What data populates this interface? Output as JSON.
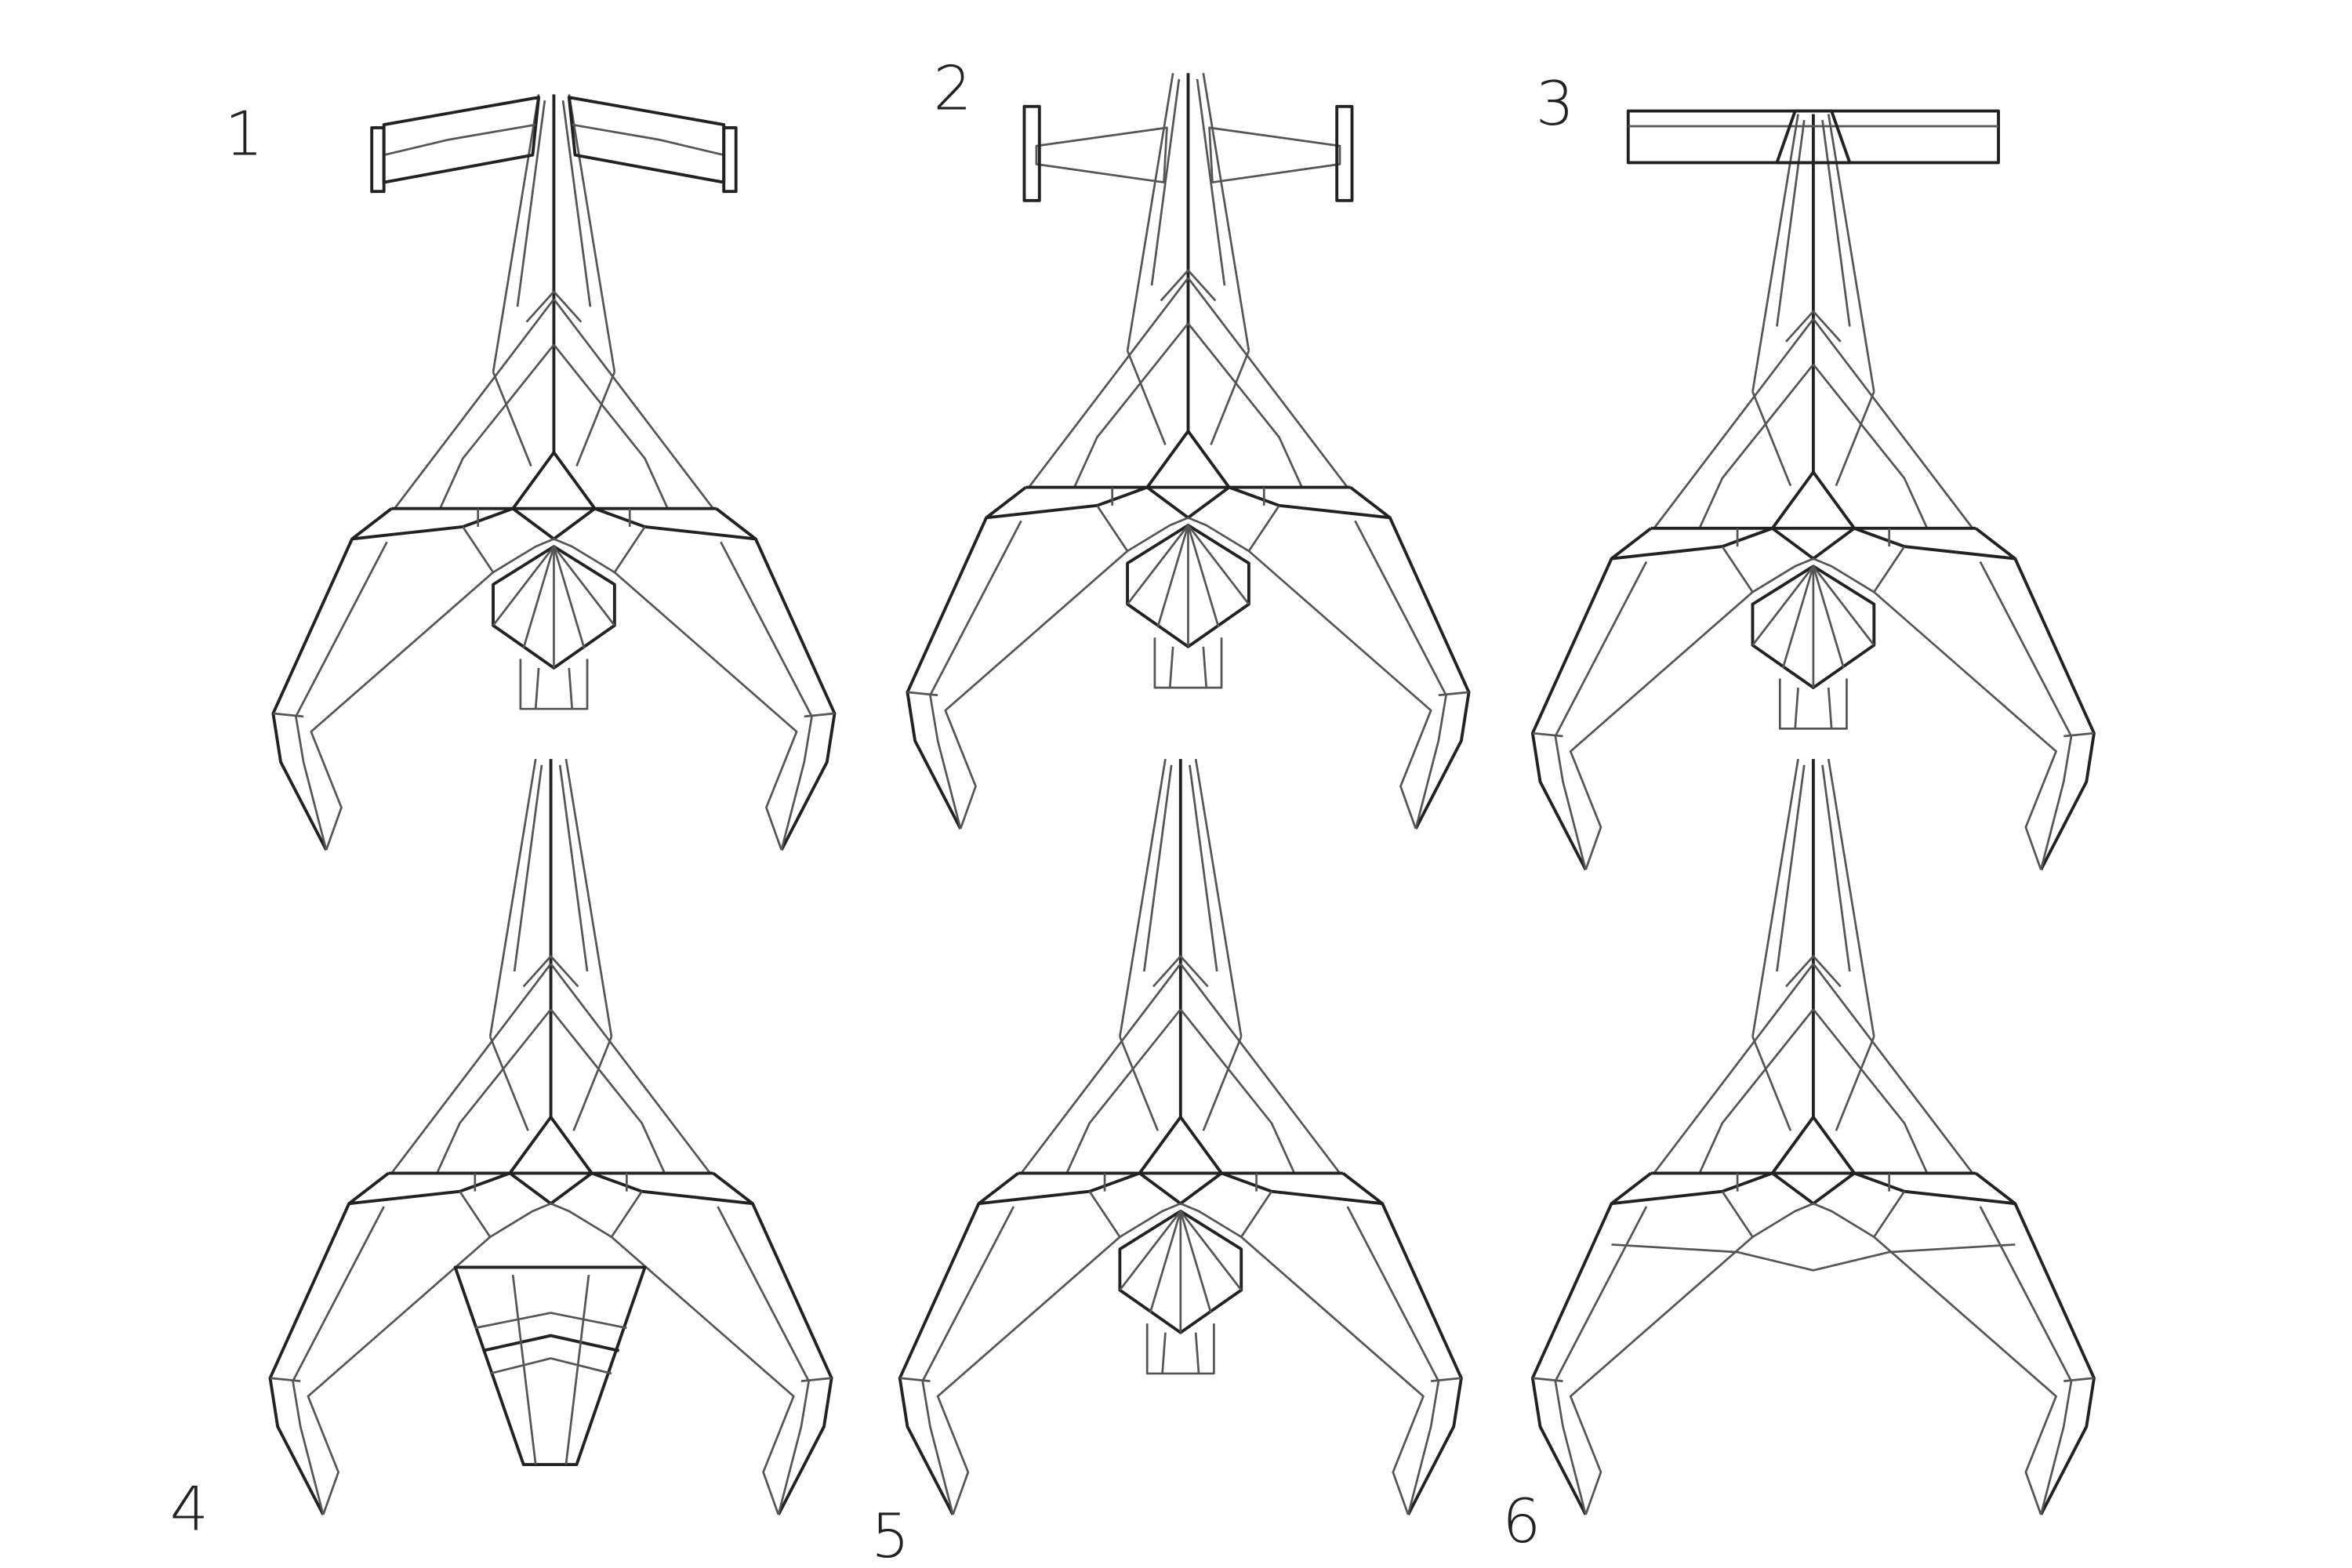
{
  "sketches": [
    {
      "label": "1"
    },
    {
      "label": "2"
    },
    {
      "label": "3"
    },
    {
      "label": "4"
    },
    {
      "label": "5"
    },
    {
      "label": "6"
    }
  ]
}
